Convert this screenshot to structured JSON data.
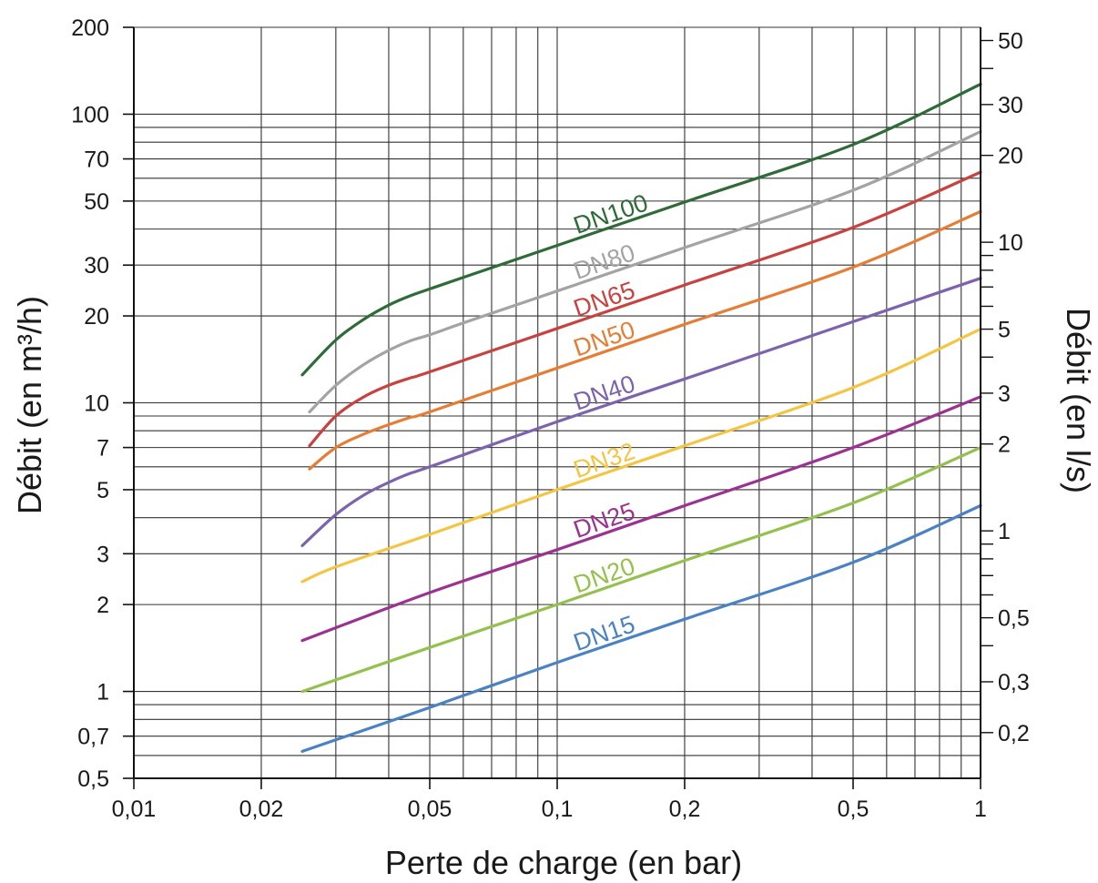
{
  "chart_data": {
    "type": "line",
    "title": "",
    "xlabel": "Perte de charge (en bar)",
    "ylabel_left": "Débit (en m³/h)",
    "ylabel_right": "Débit (en l/s)",
    "x_scale": "log",
    "y_scale": "log",
    "xlim": [
      0.01,
      1
    ],
    "ylim_left": [
      0.5,
      200
    ],
    "grid": true,
    "legend": "inline labels",
    "x_ticks": [
      {
        "value": 0.01,
        "label": "0,01"
      },
      {
        "value": 0.02,
        "label": "0,02"
      },
      {
        "value": 0.05,
        "label": "0,05"
      },
      {
        "value": 0.1,
        "label": "0,1"
      },
      {
        "value": 0.2,
        "label": "0,2"
      },
      {
        "value": 0.5,
        "label": "0,5"
      },
      {
        "value": 1,
        "label": "1"
      }
    ],
    "y_ticks_left": [
      {
        "value": 0.5,
        "label": "0,5"
      },
      {
        "value": 0.7,
        "label": "0,7"
      },
      {
        "value": 1,
        "label": "1"
      },
      {
        "value": 2,
        "label": "2"
      },
      {
        "value": 3,
        "label": "3"
      },
      {
        "value": 5,
        "label": "5"
      },
      {
        "value": 7,
        "label": "7"
      },
      {
        "value": 10,
        "label": "10"
      },
      {
        "value": 20,
        "label": "20"
      },
      {
        "value": 30,
        "label": "30"
      },
      {
        "value": 50,
        "label": "50"
      },
      {
        "value": 70,
        "label": "70"
      },
      {
        "value": 100,
        "label": "100"
      },
      {
        "value": 200,
        "label": "200"
      }
    ],
    "y_ticks_right": [
      {
        "value": 0.2,
        "label": "0,2"
      },
      {
        "value": 0.3,
        "label": "0,3"
      },
      {
        "value": 0.5,
        "label": "0,5"
      },
      {
        "value": 1,
        "label": "1"
      },
      {
        "value": 2,
        "label": "2"
      },
      {
        "value": 3,
        "label": "3"
      },
      {
        "value": 5,
        "label": "5"
      },
      {
        "value": 10,
        "label": "10"
      },
      {
        "value": 20,
        "label": "20"
      },
      {
        "value": 30,
        "label": "30"
      },
      {
        "value": 50,
        "label": "50"
      }
    ],
    "series": [
      {
        "name": "DN100",
        "color": "#2e6b36",
        "x": [
          0.025,
          0.03,
          0.035,
          0.04,
          0.045,
          0.05,
          0.06,
          0.1,
          0.2,
          0.5,
          1
        ],
        "y": [
          12.5,
          16.5,
          19.5,
          21.8,
          23.5,
          24.8,
          27.2,
          35.1,
          49.6,
          78.5,
          127
        ]
      },
      {
        "name": "DN80",
        "color": "#a3a3a3",
        "x": [
          0.026,
          0.03,
          0.035,
          0.04,
          0.045,
          0.05,
          0.06,
          0.1,
          0.2,
          0.5,
          1
        ],
        "y": [
          9.3,
          11.5,
          13.6,
          15.2,
          16.4,
          17.2,
          18.9,
          24.4,
          34.5,
          54.5,
          87
        ]
      },
      {
        "name": "DN65",
        "color": "#c8433f",
        "x": [
          0.026,
          0.03,
          0.035,
          0.04,
          0.045,
          0.05,
          0.1,
          0.2,
          0.5,
          1
        ],
        "y": [
          7.1,
          9.0,
          10.5,
          11.5,
          12.2,
          12.8,
          18.1,
          25.6,
          40.5,
          63
        ]
      },
      {
        "name": "DN50",
        "color": "#e67d35",
        "x": [
          0.026,
          0.03,
          0.035,
          0.04,
          0.045,
          0.05,
          0.1,
          0.2,
          0.5,
          1
        ],
        "y": [
          5.9,
          7.0,
          7.8,
          8.4,
          8.9,
          9.3,
          13.2,
          18.7,
          29.5,
          46
        ]
      },
      {
        "name": "DN40",
        "color": "#7d63ad",
        "x": [
          0.025,
          0.03,
          0.035,
          0.04,
          0.045,
          0.05,
          0.1,
          0.2,
          0.5,
          1
        ],
        "y": [
          3.2,
          4.1,
          4.8,
          5.3,
          5.7,
          6.0,
          8.6,
          12.1,
          19.1,
          27
        ]
      },
      {
        "name": "DN32",
        "color": "#f4c542",
        "x": [
          0.025,
          0.03,
          0.05,
          0.1,
          0.2,
          0.5,
          1
        ],
        "y": [
          2.4,
          2.7,
          3.5,
          5.0,
          7.1,
          11.3,
          18
        ]
      },
      {
        "name": "DN25",
        "color": "#9b3191",
        "x": [
          0.025,
          0.05,
          0.1,
          0.2,
          0.5,
          1
        ],
        "y": [
          1.5,
          2.2,
          3.1,
          4.4,
          7.0,
          10.5
        ]
      },
      {
        "name": "DN20",
        "color": "#94c14e",
        "x": [
          0.025,
          0.05,
          0.1,
          0.2,
          0.5,
          1
        ],
        "y": [
          1.0,
          1.42,
          2.0,
          2.84,
          4.5,
          7.0
        ]
      },
      {
        "name": "DN15",
        "color": "#4a82c3",
        "x": [
          0.025,
          0.05,
          0.1,
          0.2,
          0.5,
          1
        ],
        "y": [
          0.62,
          0.88,
          1.26,
          1.78,
          2.8,
          4.4
        ]
      }
    ]
  }
}
